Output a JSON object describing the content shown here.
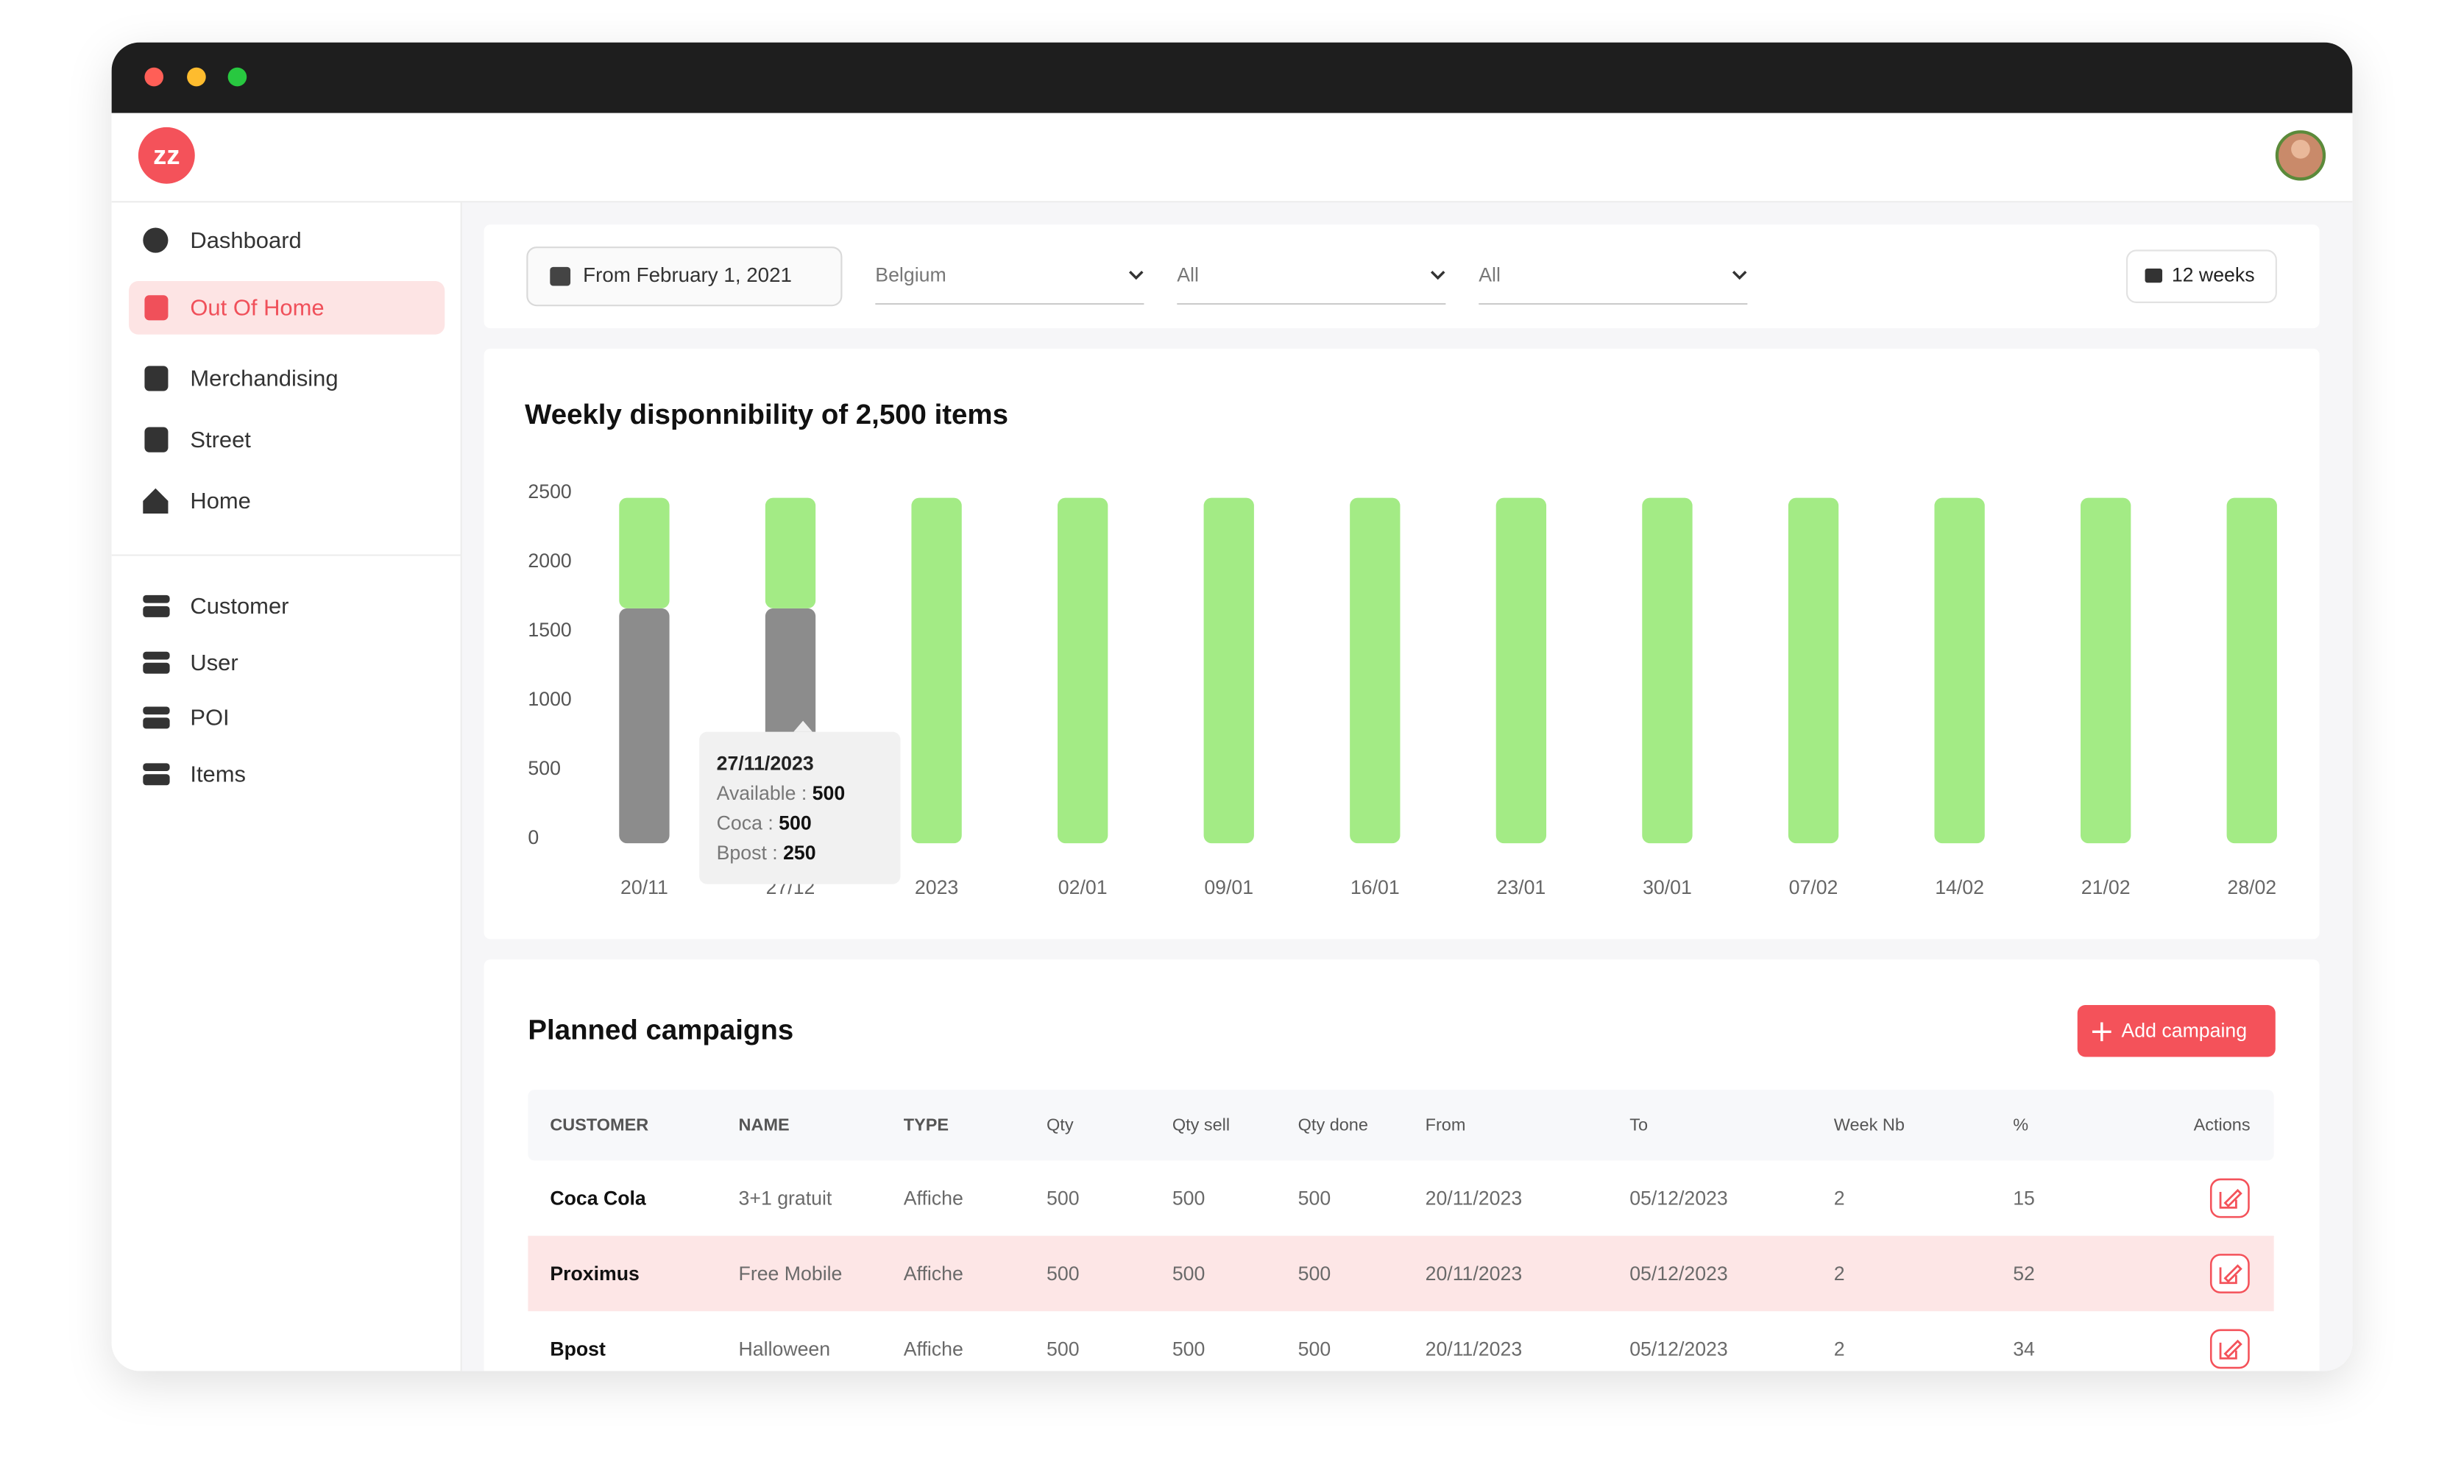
{
  "app": {
    "logo": "zz"
  },
  "sidebar": {
    "primary": [
      "Dashboard",
      "Out Of Home",
      "Merchandising",
      "Street",
      "Home"
    ],
    "secondary": [
      "Customer",
      "User",
      "POI",
      "Items"
    ]
  },
  "filters": {
    "date": "From February 1, 2021",
    "country": "Belgium",
    "select2": "All",
    "select3": "All",
    "period": "12 weeks"
  },
  "chart_data": {
    "type": "bar",
    "stacked": true,
    "title": "Weekly disponnibility of 2,500 items",
    "categories": [
      "20/11",
      "27/12",
      "2023",
      "02/01",
      "09/01",
      "16/01",
      "23/01",
      "30/01",
      "07/02",
      "14/02",
      "21/02",
      "28/02"
    ],
    "series": [
      {
        "color": "#8c8c8c",
        "values": [
          1700,
          1700,
          0,
          0,
          0,
          0,
          0,
          0,
          0,
          0,
          0,
          0
        ]
      },
      {
        "color": "#a3eb85",
        "values": [
          800,
          800,
          2500,
          2500,
          2500,
          2500,
          2500,
          2500,
          2500,
          2500,
          2500,
          2500
        ]
      }
    ],
    "ylim": [
      0,
      2500
    ],
    "yticks": [
      0,
      500,
      1000,
      1500,
      2000,
      2500
    ],
    "tooltip": {
      "title": "27/11/2023",
      "rows": [
        {
          "label": "Available : ",
          "value": 500
        },
        {
          "label": "Coca : ",
          "value": 500
        },
        {
          "label": "Bpost : ",
          "value": 250
        }
      ]
    }
  },
  "campaigns": {
    "title": "Planned campaigns",
    "add_button": "Add campaing",
    "columns": [
      "CUSTOMER",
      "NAME",
      "TYPE",
      "Qty",
      "Qty sell",
      "Qty done",
      "From",
      "To",
      "Week Nb",
      "%",
      "Actions"
    ],
    "rows": [
      [
        "Coca Cola",
        "3+1 gratuit",
        "Affiche",
        500,
        500,
        500,
        "20/11/2023",
        "05/12/2023",
        2,
        15
      ],
      [
        "Proximus",
        "Free Mobile",
        "Affiche",
        500,
        500,
        500,
        "20/11/2023",
        "05/12/2023",
        2,
        52
      ],
      [
        "Bpost",
        "Halloween",
        "Affiche",
        500,
        500,
        500,
        "20/11/2023",
        "05/12/2023",
        2,
        34
      ]
    ]
  }
}
